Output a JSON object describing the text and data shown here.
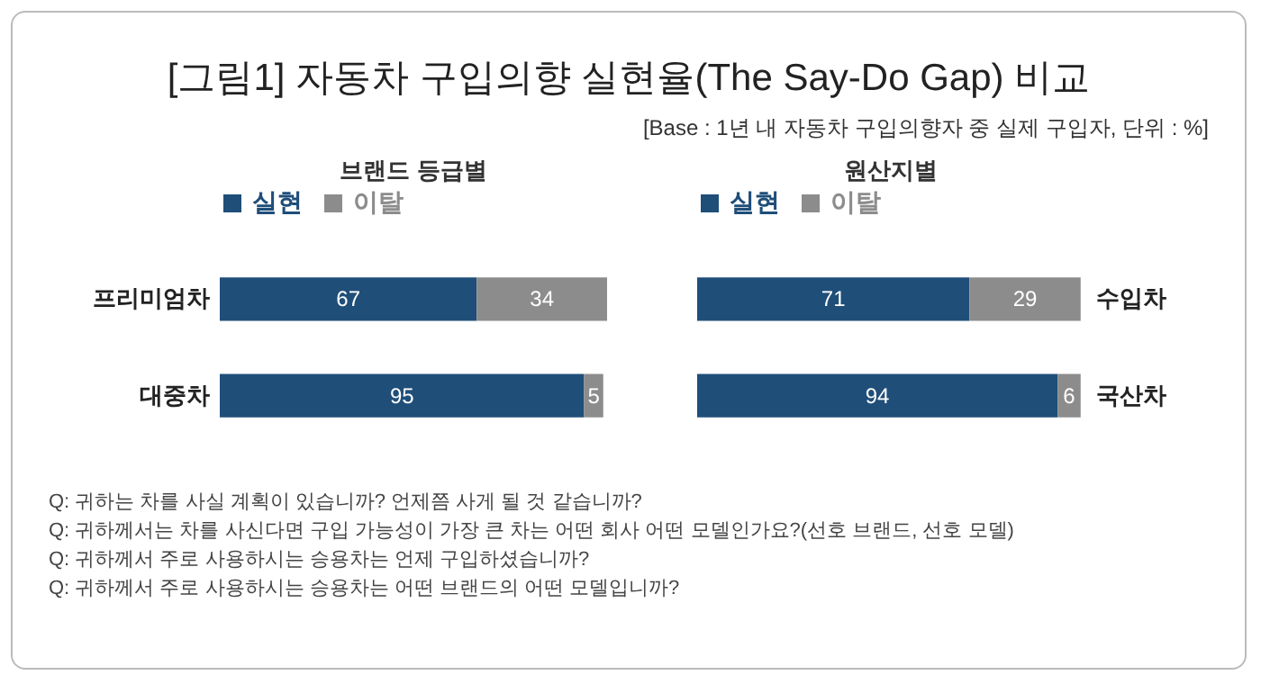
{
  "chart_data": [
    {
      "type": "other",
      "title": "[그림1] 자동차 구입의향 실현율(The Say-Do Gap) 비교",
      "subtitle": "[Base : 1년 내 자동차 구입의향자 중 실제 구입자, 단위 : %]"
    },
    {
      "type": "bar",
      "title": "브랜드 등급별",
      "orientation": "horizontal",
      "stacked": true,
      "data_labels": true,
      "legend": "top",
      "tick_labels": "y",
      "xlim": [
        0,
        101
      ],
      "categories": [
        "프리미엄차",
        "대중차"
      ],
      "series": [
        {
          "name": "실현",
          "color": "#1f4e79",
          "values": [
            67,
            95
          ]
        },
        {
          "name": "이탈",
          "color": "#8c8c8c",
          "values": [
            34,
            5
          ]
        }
      ]
    },
    {
      "type": "bar",
      "title": "원산지별",
      "orientation": "horizontal",
      "stacked": true,
      "data_labels": true,
      "legend": "top",
      "tick_labels": "y",
      "xlim": [
        0,
        101
      ],
      "categories": [
        "수입차",
        "국산차"
      ],
      "series": [
        {
          "name": "실현",
          "color": "#1f4e79",
          "values": [
            71,
            94
          ]
        },
        {
          "name": "이탈",
          "color": "#8c8c8c",
          "values": [
            29,
            6
          ]
        }
      ]
    },
    {
      "type": "other",
      "annotations": [
        "Q: 귀하는 차를 사실 계획이 있습니까? 언제쯤 사게 될 것 같습니까?",
        "Q: 귀하께서는 차를 사신다면 구입 가능성이 가장 큰 차는 어떤 회사 어떤 모델인가요?(선호 브랜드, 선호 모델)",
        "Q: 귀하께서 주로 사용하시는 승용차는 언제 구입하셨습니까?",
        "Q: 귀하께서 주로 사용하시는 승용차는 어떤 브랜드의 어떤 모델입니까?"
      ]
    }
  ]
}
